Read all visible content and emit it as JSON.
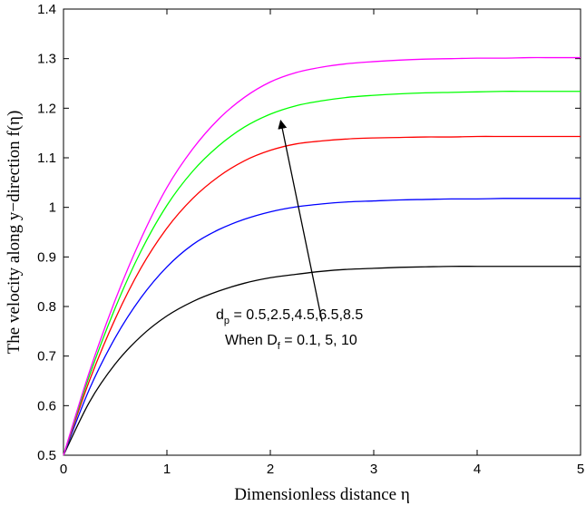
{
  "chart_data": {
    "type": "line",
    "xlabel": "Dimensionless distance η",
    "ylabel": "The velocity along y−direction f(η)",
    "xlim": [
      0,
      5
    ],
    "ylim": [
      0.5,
      1.4
    ],
    "xticks": [
      0,
      1,
      2,
      3,
      4,
      5
    ],
    "yticks": [
      0.5,
      0.6,
      0.7,
      0.8,
      0.9,
      1,
      1.1,
      1.2,
      1.3,
      1.4
    ],
    "xtick_labels": [
      "0",
      "1",
      "2",
      "3",
      "4",
      "5"
    ],
    "ytick_labels": [
      "0.5",
      "0.6",
      "0.7",
      "0.8",
      "0.9",
      "1",
      "1.1",
      "1.2",
      "1.3",
      "1.4"
    ],
    "grid": false,
    "x": [
      0,
      0.25,
      0.5,
      0.75,
      1,
      1.25,
      1.5,
      1.75,
      2,
      2.25,
      2.5,
      2.75,
      3,
      3.25,
      3.5,
      3.75,
      4,
      4.25,
      4.5,
      4.75,
      5
    ],
    "series": [
      {
        "color": "#000000",
        "values": [
          0.5,
          0.607,
          0.684,
          0.74,
          0.781,
          0.81,
          0.831,
          0.847,
          0.858,
          0.865,
          0.871,
          0.875,
          0.877,
          0.879,
          0.88,
          0.881,
          0.881,
          0.881,
          0.881,
          0.881,
          0.881
        ]
      },
      {
        "color": "#0000ff",
        "values": [
          0.5,
          0.633,
          0.737,
          0.818,
          0.88,
          0.925,
          0.955,
          0.976,
          0.991,
          1.001,
          1.007,
          1.011,
          1.013,
          1.015,
          1.016,
          1.017,
          1.017,
          1.018,
          1.018,
          1.018,
          1.018
        ]
      },
      {
        "color": "#ff0000",
        "values": [
          0.5,
          0.65,
          0.775,
          0.878,
          0.958,
          1.018,
          1.062,
          1.094,
          1.115,
          1.128,
          1.134,
          1.138,
          1.14,
          1.141,
          1.142,
          1.142,
          1.143,
          1.143,
          1.143,
          1.143,
          1.143
        ]
      },
      {
        "color": "#00ff00",
        "values": [
          0.5,
          0.66,
          0.797,
          0.912,
          1.004,
          1.073,
          1.124,
          1.162,
          1.188,
          1.205,
          1.215,
          1.222,
          1.226,
          1.229,
          1.231,
          1.232,
          1.233,
          1.234,
          1.234,
          1.234,
          1.234
        ]
      },
      {
        "color": "#ff00ff",
        "values": [
          0.5,
          0.668,
          0.813,
          0.937,
          1.04,
          1.118,
          1.178,
          1.222,
          1.253,
          1.272,
          1.283,
          1.29,
          1.294,
          1.297,
          1.299,
          1.3,
          1.301,
          1.301,
          1.302,
          1.302,
          1.302
        ]
      }
    ],
    "annotation": {
      "line1_main": "d",
      "line1_sub": "p",
      "line1_rest": " = 0.5,2.5,4.5,6.5,8.5",
      "line2_main": "When D",
      "line2_sub": "f",
      "line2_rest": " = 0.1, 5, 10",
      "arrow_from": [
        2.5,
        0.77
      ],
      "arrow_to": [
        2.1,
        1.175
      ]
    }
  }
}
